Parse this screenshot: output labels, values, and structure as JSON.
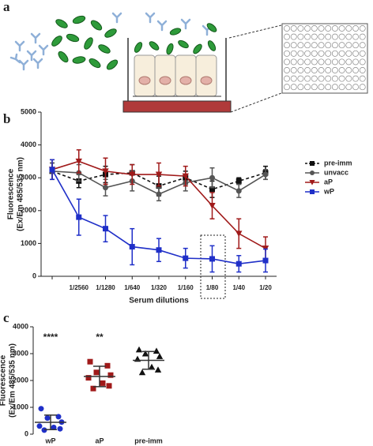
{
  "panel_labels": [
    "a",
    "b",
    "c"
  ],
  "chart_data": [
    {
      "type": "line",
      "ylabel": [
        "Fluorescence",
        "(Ex/Em 485/535 nm)"
      ],
      "xlabel": "Serum dilutions",
      "categories": [
        null,
        "1/2560",
        "1/1280",
        "1/640",
        "1/320",
        "1/160",
        "1/80",
        "1/40",
        "1/20"
      ],
      "ylim": [
        0,
        5000
      ],
      "yticks": [
        0,
        1000,
        2000,
        3000,
        4000,
        5000
      ],
      "legend": "upper right",
      "series": [
        {
          "name": "pre-imm",
          "color": "#111111",
          "marker": "square",
          "dashed": true,
          "values": [
            3200,
            2900,
            3100,
            3150,
            2750,
            3000,
            2650,
            2900,
            3150
          ],
          "errors": [
            250,
            200,
            250,
            250,
            300,
            200,
            250,
            100,
            200
          ]
        },
        {
          "name": "unvacc",
          "color": "#555555",
          "marker": "circle",
          "dashed": false,
          "values": [
            3200,
            3150,
            2700,
            2900,
            2500,
            2850,
            3000,
            2600,
            3100
          ],
          "errors": [
            250,
            250,
            250,
            300,
            200,
            250,
            300,
            200,
            150
          ]
        },
        {
          "name": "aP",
          "color": "#a01a1a",
          "marker": "triangle-down",
          "dashed": false,
          "values": [
            3250,
            3500,
            3200,
            3100,
            3100,
            3050,
            2150,
            1300,
            850
          ],
          "errors": [
            300,
            350,
            400,
            300,
            350,
            300,
            400,
            450,
            350
          ]
        },
        {
          "name": "wP",
          "color": "#1f2fc8",
          "marker": "square",
          "dashed": false,
          "values": [
            3250,
            1800,
            1450,
            900,
            800,
            550,
            530,
            380,
            480
          ],
          "errors": [
            300,
            550,
            400,
            550,
            350,
            300,
            400,
            250,
            350
          ]
        }
      ]
    },
    {
      "type": "dotplot",
      "ylabel": [
        "Fluorescence",
        "(Ex/Em 485/535 nm)"
      ],
      "categories": [
        "wP",
        "aP",
        "pre-imm"
      ],
      "ylim": [
        0,
        4000
      ],
      "yticks": [
        0,
        1000,
        2000,
        3000,
        4000
      ],
      "groups": [
        {
          "color": "#1f2fc8",
          "marker": "circle",
          "label": "****",
          "values": [
            950,
            650,
            600,
            450,
            300,
            250,
            200,
            150
          ],
          "mean": 440,
          "sd": 270
        },
        {
          "color": "#a01a1a",
          "marker": "square",
          "label": "**",
          "values": [
            2700,
            2550,
            2300,
            2200,
            2100,
            1900,
            1800,
            1700
          ],
          "mean": 2150,
          "sd": 380
        },
        {
          "color": "#111111",
          "marker": "triangle",
          "values": [
            3150,
            3100,
            3000,
            2900,
            2800,
            2500,
            2400,
            2300
          ],
          "mean": 2750,
          "sd": 330
        }
      ]
    }
  ]
}
